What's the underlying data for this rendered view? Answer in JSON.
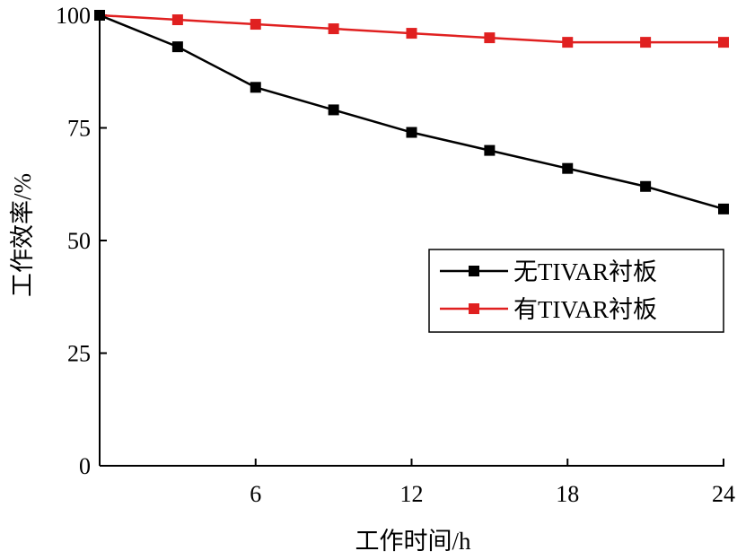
{
  "chart_data": {
    "type": "line",
    "title": "",
    "xlabel": "工作时间/h",
    "ylabel": "工作效率/%",
    "xlim": [
      0,
      24
    ],
    "ylim": [
      0,
      100
    ],
    "xticks": [
      6,
      12,
      18,
      24
    ],
    "yticks": [
      0,
      25,
      50,
      75,
      100
    ],
    "grid": false,
    "legend_position": "center-right",
    "x": [
      0,
      3,
      6,
      9,
      12,
      15,
      18,
      21,
      24
    ],
    "series": [
      {
        "name": "无TIVAR衬板",
        "color": "#000000",
        "values": [
          100,
          93,
          84,
          79,
          74,
          70,
          66,
          62,
          57
        ]
      },
      {
        "name": "有TIVAR衬板",
        "color": "#e02020",
        "values": [
          100,
          99,
          98,
          97,
          96,
          95,
          94,
          94,
          94
        ]
      }
    ]
  }
}
